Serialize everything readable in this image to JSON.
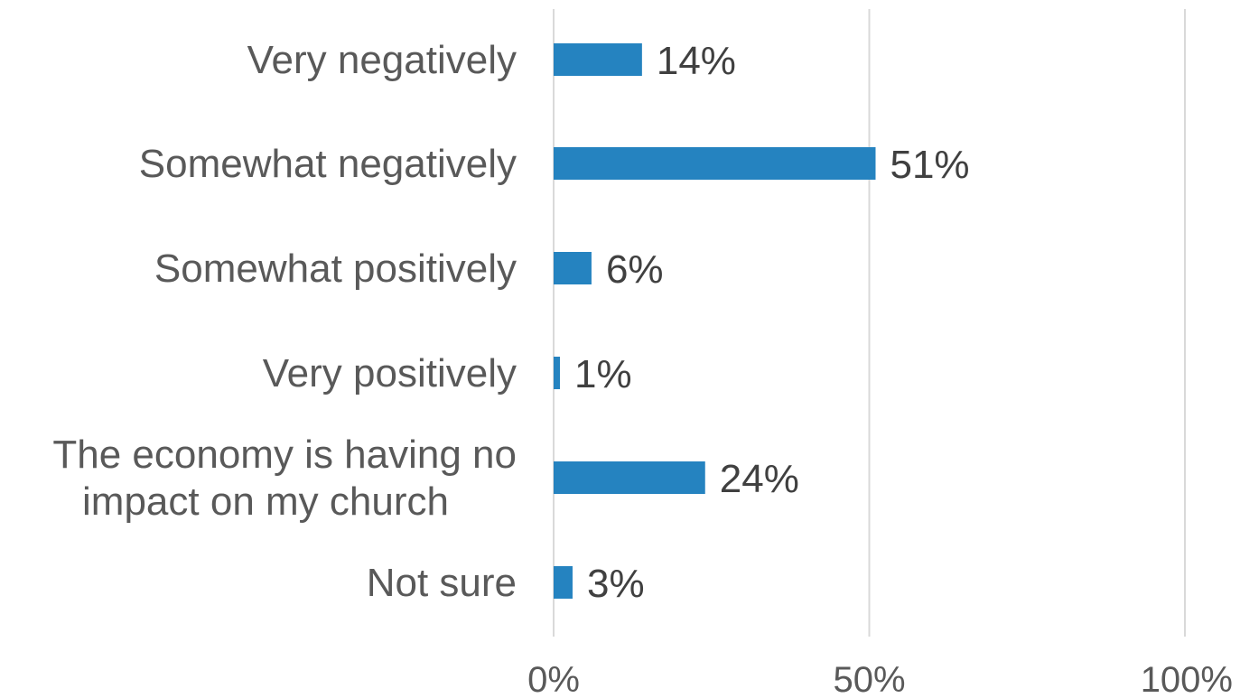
{
  "chart_data": {
    "type": "bar",
    "orientation": "horizontal",
    "categories": [
      [
        "Very negatively"
      ],
      [
        "Somewhat negatively"
      ],
      [
        "Somewhat positively"
      ],
      [
        "Very positively"
      ],
      [
        "The economy is having no",
        "impact on my church"
      ],
      [
        "Not sure"
      ]
    ],
    "values": [
      14,
      51,
      6,
      1,
      24,
      3
    ],
    "data_labels": [
      "14%",
      "51%",
      "6%",
      "1%",
      "24%",
      "3%"
    ],
    "xlim": [
      0,
      100
    ],
    "x_ticks": [
      0,
      50,
      100
    ],
    "x_tick_labels": [
      "0%",
      "50%",
      "100%"
    ],
    "grid": true,
    "legend": "none",
    "bar_color": "#2583C0",
    "gridline_color": "#D9D9D9"
  }
}
